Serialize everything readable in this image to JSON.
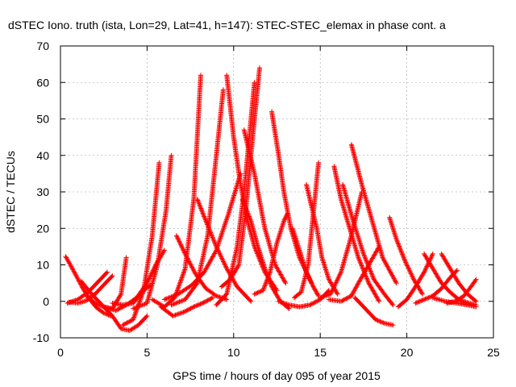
{
  "chart_data": {
    "type": "scatter",
    "title": "dSTEC Iono. truth (ista, Lon=29, Lat=41, h=147): STEC-STEC_elemax in phase cont. a",
    "xlabel": "GPS time / hours of day 095 of year 2015",
    "ylabel": "dSTEC  / TECUs",
    "xlim": [
      0,
      25
    ],
    "ylim": [
      -10,
      70
    ],
    "xticks": [
      0,
      5,
      10,
      15,
      20,
      25
    ],
    "yticks": [
      -10,
      0,
      10,
      20,
      30,
      40,
      50,
      60,
      70
    ],
    "grid": true,
    "marker": "+",
    "color": "#ff0000",
    "series": [
      {
        "x": [
          0.3,
          0.8,
          1.3,
          1.7,
          2.1,
          2.5,
          2.9
        ],
        "y": [
          12.3,
          8.0,
          3.5,
          0.5,
          -1.8,
          -3.2,
          -4.0
        ]
      },
      {
        "x": [
          0.4,
          1.0,
          1.6,
          2.2,
          2.7
        ],
        "y": [
          -0.5,
          0.5,
          2.5,
          5.5,
          8.0
        ]
      },
      {
        "x": [
          0.5,
          1.0,
          1.5,
          2.0,
          2.5,
          3.0
        ],
        "y": [
          -0.2,
          -0.5,
          0.2,
          2.0,
          4.5,
          7.0
        ]
      },
      {
        "x": [
          1.2,
          1.8,
          2.4,
          3.0,
          3.5,
          4.0,
          4.5,
          5.0
        ],
        "y": [
          5.5,
          2.0,
          -1.0,
          -4.0,
          -7.5,
          -8.0,
          -6.5,
          -4.0
        ]
      },
      {
        "x": [
          1.5,
          2.0,
          2.5,
          3.0,
          3.5,
          3.8
        ],
        "y": [
          1.5,
          -0.5,
          -1.5,
          -2.0,
          2.0,
          12.0
        ]
      },
      {
        "x": [
          2.5,
          3.2,
          3.8,
          4.4,
          5.0,
          5.5,
          6.0
        ],
        "y": [
          -1.5,
          -2.5,
          -1.0,
          1.0,
          5.0,
          10.0,
          14.0
        ]
      },
      {
        "x": [
          3.0,
          3.6,
          4.2,
          4.7,
          5.2
        ],
        "y": [
          -0.5,
          -1.0,
          -0.5,
          2.5,
          4.5
        ]
      },
      {
        "x": [
          3.6,
          4.2,
          4.8,
          5.3,
          5.7
        ],
        "y": [
          -6.5,
          -5.0,
          3.0,
          18.0,
          38.0
        ]
      },
      {
        "x": [
          4.2,
          5.0,
          5.6,
          6.1,
          6.4
        ],
        "y": [
          -2.0,
          -0.5,
          10.0,
          25.0,
          40.0
        ]
      },
      {
        "x": [
          5.8,
          6.5,
          7.1,
          7.7,
          8.2,
          8.8
        ],
        "y": [
          -1.5,
          -4.0,
          -3.0,
          -1.5,
          -0.5,
          1.0
        ]
      },
      {
        "x": [
          5.3,
          6.0,
          6.6,
          7.2,
          7.7,
          8.1
        ],
        "y": [
          0.5,
          -1.5,
          1.0,
          9.0,
          28.0,
          62.0
        ]
      },
      {
        "x": [
          6.4,
          7.2,
          7.9,
          8.5,
          9.0,
          9.4
        ],
        "y": [
          -1.0,
          0.5,
          5.0,
          18.0,
          40.0,
          58.0
        ]
      },
      {
        "x": [
          6.7,
          7.2,
          7.8,
          8.4,
          9.0,
          9.6
        ],
        "y": [
          18.0,
          13.0,
          7.5,
          3.5,
          1.5,
          0.5
        ]
      },
      {
        "x": [
          7.9,
          8.4,
          9.0,
          9.6,
          10.2,
          11.0
        ],
        "y": [
          28.0,
          22.0,
          15.0,
          9.0,
          4.0,
          0.0
        ]
      },
      {
        "x": [
          6.0,
          6.8,
          7.6,
          8.3,
          9.0,
          9.7,
          10.4
        ],
        "y": [
          0.5,
          2.0,
          4.5,
          8.0,
          14.0,
          24.0,
          35.0
        ]
      },
      {
        "x": [
          9.6,
          10.0,
          10.4,
          10.8,
          11.2,
          11.8,
          12.5
        ],
        "y": [
          62.0,
          45.0,
          32.0,
          22.0,
          15.0,
          8.0,
          3.0
        ]
      },
      {
        "x": [
          9.0,
          9.6,
          10.2,
          10.6,
          11.0,
          11.2
        ],
        "y": [
          -1.0,
          2.0,
          15.0,
          30.0,
          50.0,
          60.0
        ]
      },
      {
        "x": [
          9.3,
          9.8,
          10.3,
          10.7,
          11.1,
          11.5
        ],
        "y": [
          4.0,
          6.0,
          10.0,
          25.0,
          45.0,
          64.0
        ]
      },
      {
        "x": [
          10.5,
          11.0,
          11.4,
          11.8,
          12.2,
          12.7,
          13.2
        ],
        "y": [
          28.0,
          22.0,
          15.0,
          9.0,
          4.0,
          0.0,
          -2.0
        ]
      },
      {
        "x": [
          10.6,
          11.2,
          11.8,
          12.4,
          13.0
        ],
        "y": [
          47.0,
          35.0,
          20.0,
          10.0,
          5.0
        ]
      },
      {
        "x": [
          12.2,
          12.6,
          12.9,
          13.3,
          13.8,
          14.5
        ],
        "y": [
          52.0,
          40.0,
          30.0,
          20.0,
          12.0,
          5.0
        ]
      },
      {
        "x": [
          11.2,
          11.7,
          12.1,
          12.5,
          12.9,
          13.1
        ],
        "y": [
          2.0,
          3.0,
          8.0,
          16.0,
          22.0,
          24.0
        ]
      },
      {
        "x": [
          12.6,
          13.2,
          13.8,
          14.4,
          15.0,
          15.5
        ],
        "y": [
          0.0,
          -1.0,
          -1.5,
          -1.0,
          0.5,
          3.0
        ]
      },
      {
        "x": [
          13.4,
          13.8,
          14.2,
          14.6,
          14.9
        ],
        "y": [
          20.0,
          14.0,
          8.0,
          4.0,
          1.5
        ]
      },
      {
        "x": [
          14.2,
          14.5,
          14.8,
          15.1,
          15.5,
          16.0
        ],
        "y": [
          32.0,
          26.0,
          20.0,
          12.0,
          6.0,
          2.0
        ]
      },
      {
        "x": [
          13.5,
          13.9,
          14.3,
          14.6,
          14.9
        ],
        "y": [
          1.0,
          2.5,
          10.0,
          24.0,
          38.0
        ]
      },
      {
        "x": [
          15.8,
          16.2,
          16.7,
          17.2,
          17.8,
          18.4
        ],
        "y": [
          37.0,
          28.0,
          20.0,
          12.0,
          5.0,
          0.0
        ]
      },
      {
        "x": [
          15.0,
          15.6,
          16.2,
          16.8,
          17.4
        ],
        "y": [
          1.0,
          2.0,
          8.0,
          18.0,
          30.0
        ]
      },
      {
        "x": [
          16.3,
          16.9,
          17.5,
          18.1,
          18.7,
          19.2
        ],
        "y": [
          32.0,
          22.0,
          13.0,
          6.0,
          2.0,
          -1.0
        ]
      },
      {
        "x": [
          16.8,
          17.4,
          18.0,
          18.6,
          19.4
        ],
        "y": [
          43.0,
          32.0,
          22.0,
          12.0,
          5.0
        ]
      },
      {
        "x": [
          15.5,
          16.2,
          16.8,
          17.2,
          17.8,
          18.4
        ],
        "y": [
          0.5,
          0.0,
          1.5,
          5.0,
          10.0,
          15.0
        ]
      },
      {
        "x": [
          17.0,
          17.6,
          18.2,
          18.7,
          19.2
        ],
        "y": [
          1.0,
          -2.0,
          -5.0,
          -6.0,
          -6.5
        ]
      },
      {
        "x": [
          19.0,
          19.4,
          19.9,
          20.4,
          20.9
        ],
        "y": [
          23.0,
          17.0,
          11.0,
          6.0,
          2.0
        ]
      },
      {
        "x": [
          19.5,
          20.0,
          20.5,
          21.0,
          21.5
        ],
        "y": [
          -1.5,
          0.5,
          4.0,
          8.0,
          13.0
        ]
      },
      {
        "x": [
          20.5,
          21.0,
          21.5,
          22.0,
          22.5,
          22.9
        ],
        "y": [
          -0.5,
          0.5,
          1.5,
          3.5,
          6.5,
          8.5
        ]
      },
      {
        "x": [
          21.0,
          21.5,
          22.0,
          22.5,
          23.0,
          23.6,
          24.0
        ],
        "y": [
          13.0,
          9.0,
          5.0,
          2.5,
          0.5,
          -0.5,
          -1.0
        ]
      },
      {
        "x": [
          22.0,
          22.5,
          23.0,
          23.5,
          24.0
        ],
        "y": [
          13.0,
          9.0,
          5.0,
          2.0,
          0.0
        ]
      },
      {
        "x": [
          22.3,
          22.8,
          23.3,
          23.7,
          24.0
        ],
        "y": [
          -0.5,
          0.0,
          1.5,
          4.0,
          6.0
        ]
      },
      {
        "x": [
          21.5,
          22.2,
          22.9,
          23.5,
          24.0
        ],
        "y": [
          1.0,
          0.0,
          -0.5,
          -1.0,
          -1.5
        ]
      }
    ]
  }
}
